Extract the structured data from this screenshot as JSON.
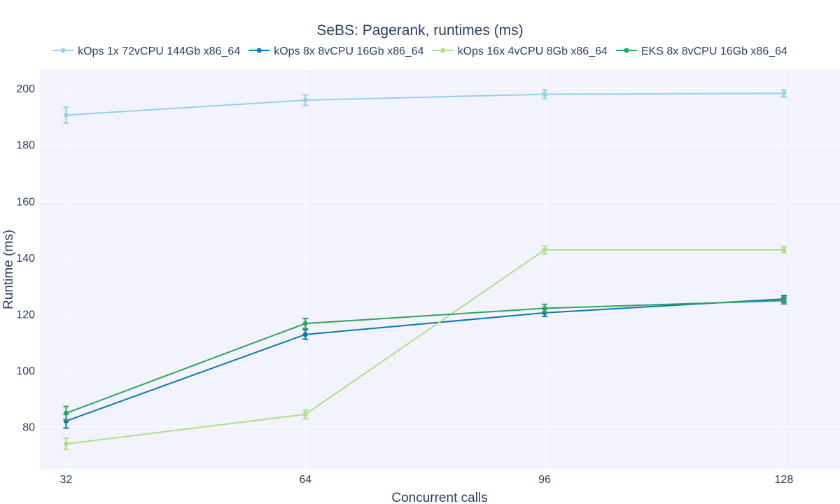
{
  "chart_data": {
    "type": "line",
    "title": "SeBS: Pagerank, runtimes (ms)",
    "xlabel": "Concurrent calls",
    "ylabel": "Runtime (ms)",
    "x": [
      32,
      64,
      96,
      128
    ],
    "xticks": [
      "32",
      "64",
      "96",
      "128"
    ],
    "yticks": [
      "80",
      "100",
      "120",
      "140",
      "160",
      "180",
      "200"
    ],
    "xlim": [
      28.5,
      135.5
    ],
    "ylim": [
      65,
      206.5
    ],
    "grid": true,
    "legend_position": "top",
    "series": [
      {
        "name": "kOps 1x 72vCPU 144Gb x86_64",
        "color": "#94d2e6",
        "values": [
          190.5,
          195.8,
          197.9,
          198.2
        ],
        "errors": [
          2.8,
          1.9,
          1.5,
          1.3
        ]
      },
      {
        "name": "kOps 8x 8vCPU 16Gb x86_64",
        "color": "#0a78b4",
        "values": [
          82,
          112.7,
          120.4,
          125.3
        ],
        "errors": [
          2.5,
          1.7,
          1.3,
          1.2
        ]
      },
      {
        "name": "kOps 16x 4vCPU 8Gb x86_64",
        "color": "#addf8d",
        "values": [
          73.9,
          84.4,
          142.7,
          142.7
        ],
        "errors": [
          2.0,
          1.6,
          1.4,
          1.1
        ]
      },
      {
        "name": "EKS 8x 8vCPU 16Gb x86_64",
        "color": "#2da45e",
        "values": [
          84.8,
          116.6,
          122.0,
          124.7
        ],
        "errors": [
          2.4,
          1.8,
          1.4,
          1.2
        ]
      }
    ]
  }
}
